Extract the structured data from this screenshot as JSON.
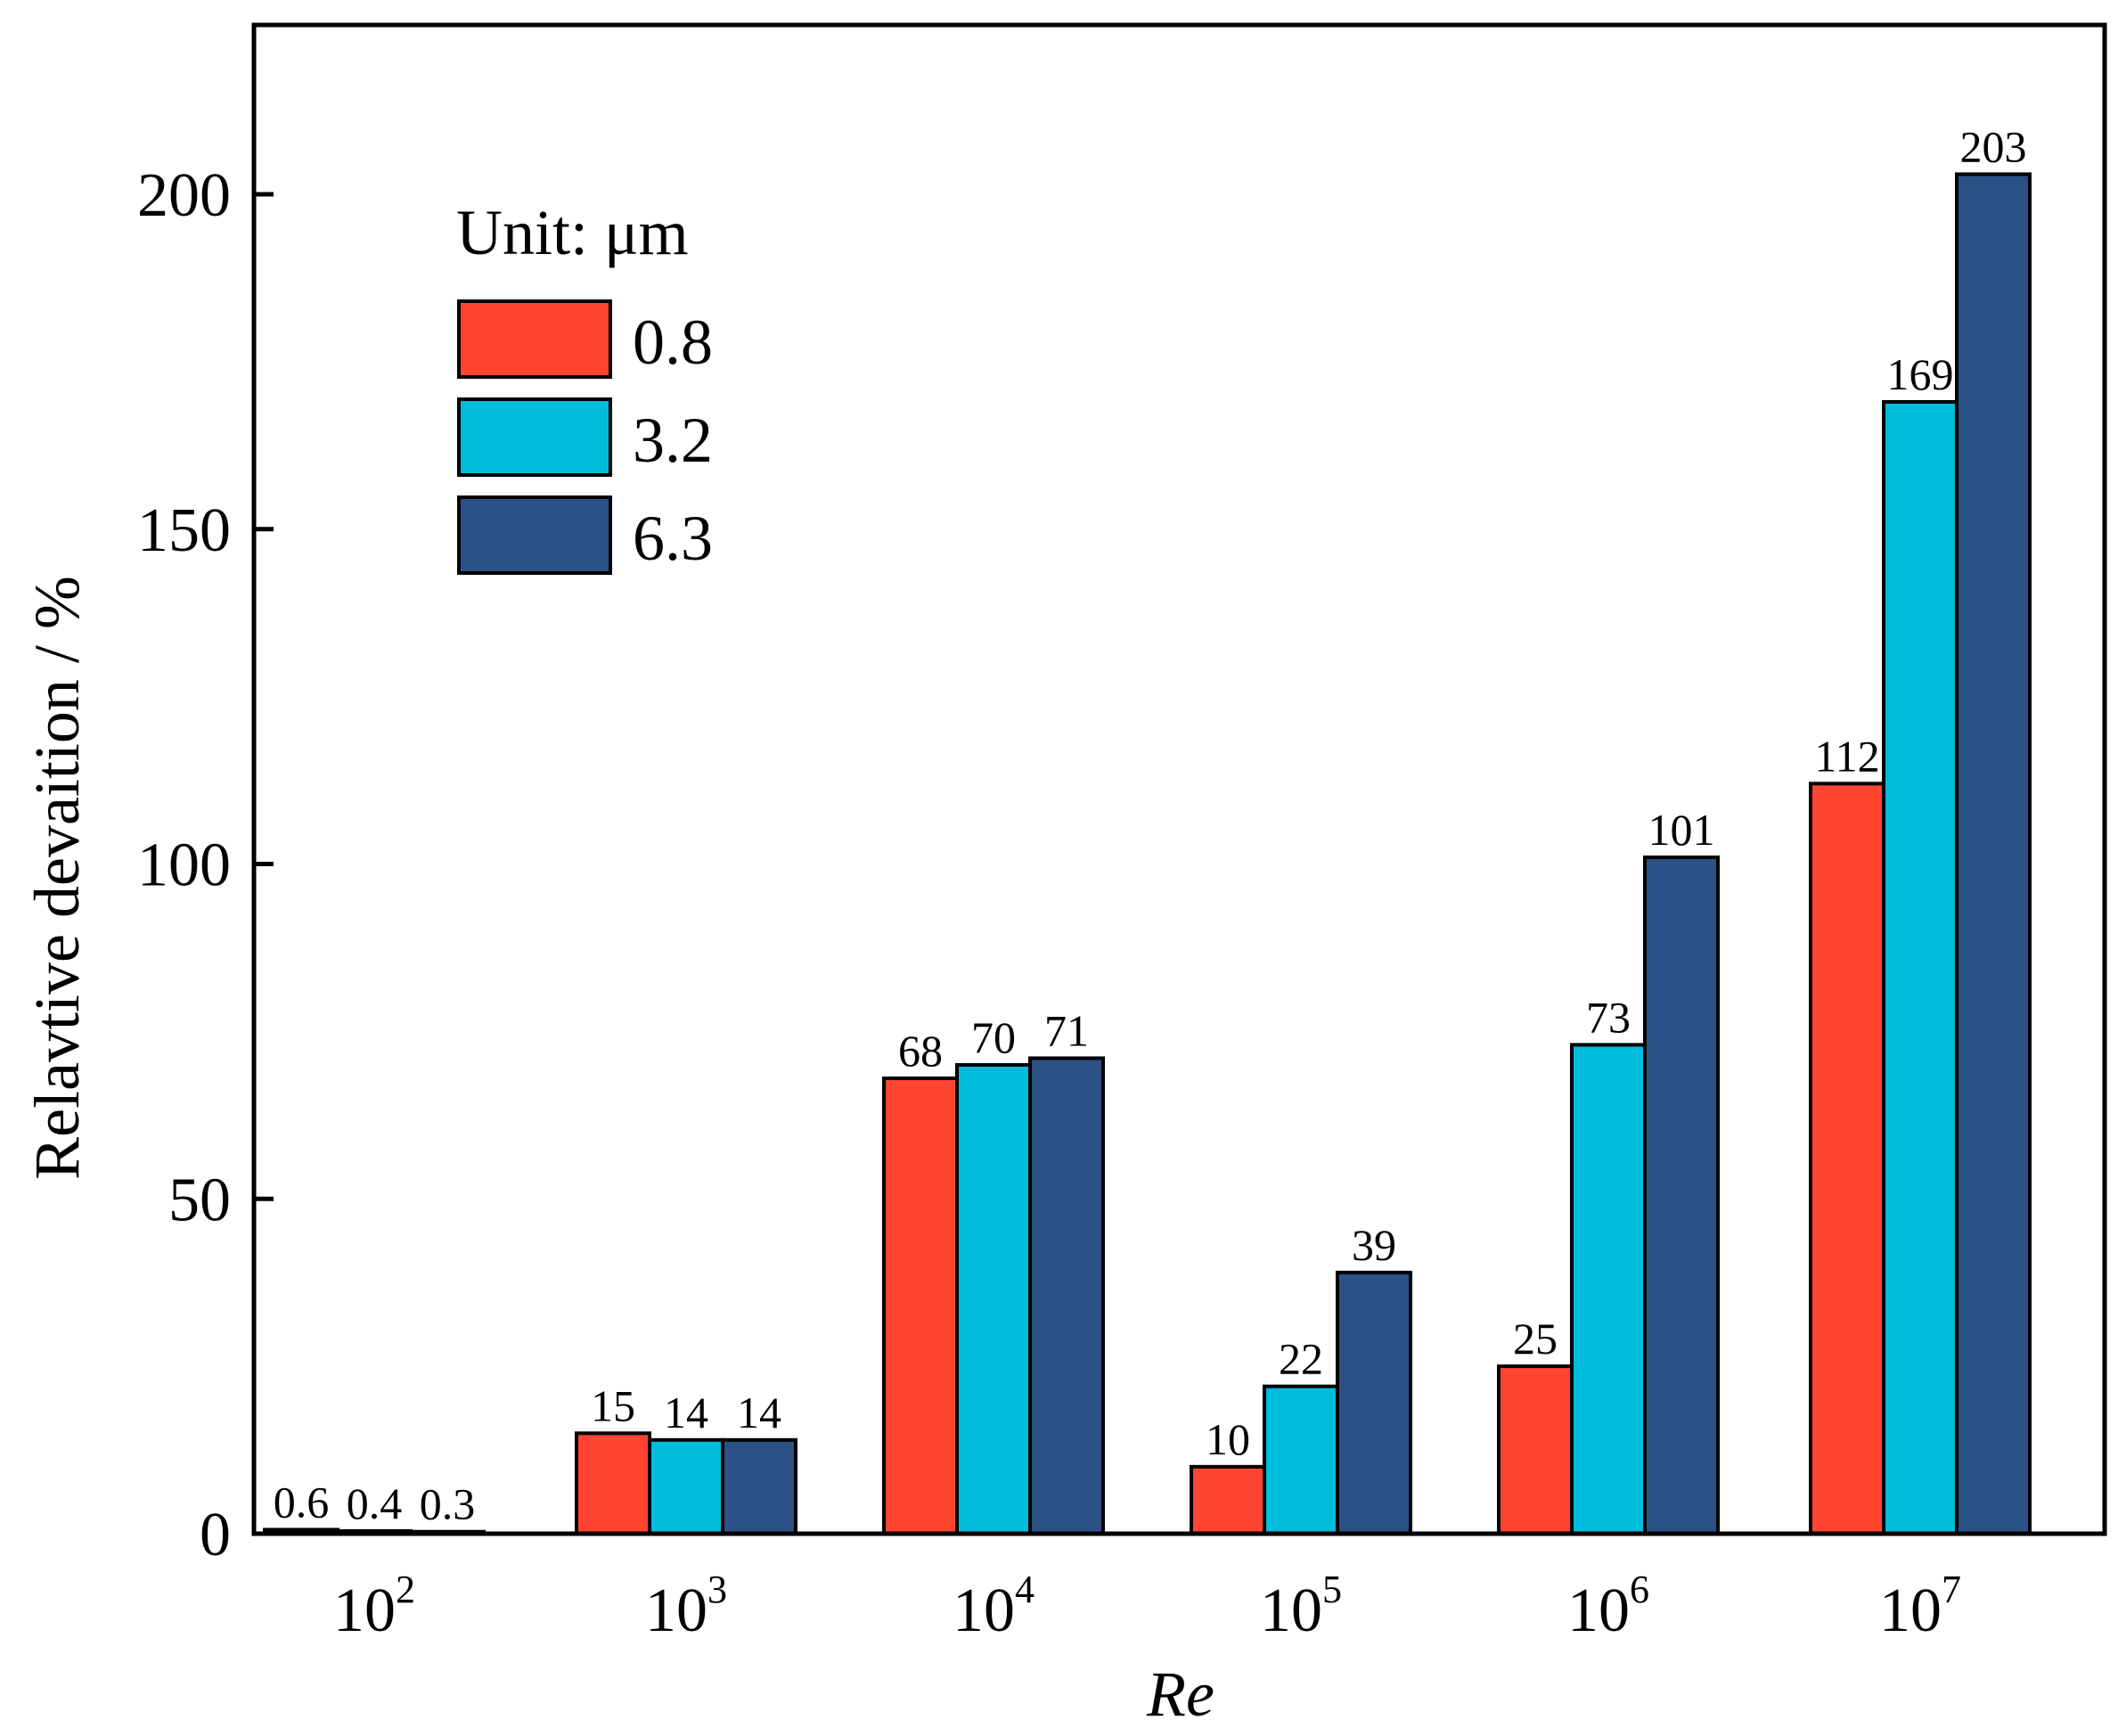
{
  "chart_data": {
    "type": "bar",
    "title": "",
    "xlabel": "Re",
    "ylabel": "Relavtive devaition / %",
    "ylim": [
      0,
      225
    ],
    "yticks": [
      0,
      50,
      100,
      150,
      200
    ],
    "categories": [
      {
        "base": "10",
        "exp": "2"
      },
      {
        "base": "10",
        "exp": "3"
      },
      {
        "base": "10",
        "exp": "4"
      },
      {
        "base": "10",
        "exp": "5"
      },
      {
        "base": "10",
        "exp": "6"
      },
      {
        "base": "10",
        "exp": "7"
      }
    ],
    "legend_title": "Unit: μm",
    "legend_position": "top-left",
    "series": [
      {
        "name": "0.8",
        "color": "#FF4530",
        "values": [
          0.6,
          15,
          68,
          10,
          25,
          112
        ],
        "labels": [
          "0.6",
          "15",
          "68",
          "10",
          "25",
          "112"
        ]
      },
      {
        "name": "3.2",
        "color": "#00BCDC",
        "values": [
          0.4,
          14,
          70,
          22,
          73,
          169
        ],
        "labels": [
          "0.4",
          "14",
          "70",
          "22",
          "73",
          "169"
        ]
      },
      {
        "name": "6.3",
        "color": "#2B5186",
        "values": [
          0.3,
          14,
          71,
          39,
          101,
          203
        ],
        "labels": [
          "0.3",
          "14",
          "71",
          "39",
          "101",
          "203"
        ]
      }
    ]
  }
}
